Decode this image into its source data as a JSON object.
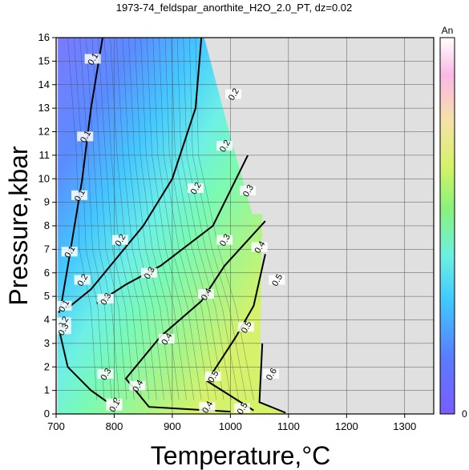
{
  "chart_data": {
    "type": "heatmap",
    "title": "1973-74_feldspar_anorthite_H2O_2.0_PT, dz=0.02",
    "xlabel": "Temperature,°C",
    "ylabel": "Pressure,kbar",
    "xlim": [
      700,
      1350
    ],
    "ylim": [
      0,
      16
    ],
    "xticks": [
      "700",
      "800",
      "900",
      "1000",
      "1100",
      "1200",
      "1300"
    ],
    "yticks": [
      "0",
      "1",
      "2",
      "3",
      "4",
      "5",
      "6",
      "7",
      "8",
      "9",
      "10",
      "11",
      "12",
      "13",
      "14",
      "15",
      "16"
    ],
    "grid": true,
    "colorbar": {
      "label": "An",
      "min_label": "0",
      "min": 0,
      "max": 1
    },
    "background_color": "#e0e0e0",
    "contour_labels": [
      {
        "t": 763,
        "p": 15.1,
        "text": "0.1"
      },
      {
        "t": 750,
        "p": 11.8,
        "text": "0.1"
      },
      {
        "t": 740,
        "p": 9.3,
        "text": "0.1"
      },
      {
        "t": 723,
        "p": 6.9,
        "text": "0.1"
      },
      {
        "t": 713,
        "p": 4.6,
        "text": "0.1"
      },
      {
        "t": 712,
        "p": 3.9,
        "text": "0.2"
      },
      {
        "t": 712,
        "p": 3.6,
        "text": "0.3"
      },
      {
        "t": 785,
        "p": 1.7,
        "text": "0.3"
      },
      {
        "t": 800,
        "p": 0.45,
        "text": "0.2"
      },
      {
        "t": 800,
        "p": 0.35,
        "text": "0.1"
      },
      {
        "t": 1005,
        "p": 13.6,
        "text": "0.2"
      },
      {
        "t": 990,
        "p": 11.4,
        "text": "0.2"
      },
      {
        "t": 940,
        "p": 9.6,
        "text": "0.2"
      },
      {
        "t": 810,
        "p": 7.4,
        "text": "0.2"
      },
      {
        "t": 745,
        "p": 5.7,
        "text": "0.2"
      },
      {
        "t": 1030,
        "p": 9.5,
        "text": "0.3"
      },
      {
        "t": 990,
        "p": 7.4,
        "text": "0.3"
      },
      {
        "t": 860,
        "p": 6.0,
        "text": "0.3"
      },
      {
        "t": 785,
        "p": 4.9,
        "text": "0.3"
      },
      {
        "t": 1050,
        "p": 7.1,
        "text": "0.4"
      },
      {
        "t": 958,
        "p": 5.1,
        "text": "0.4"
      },
      {
        "t": 890,
        "p": 3.2,
        "text": "0.4"
      },
      {
        "t": 840,
        "p": 1.2,
        "text": "0.4"
      },
      {
        "t": 960,
        "p": 0.3,
        "text": "0.4"
      },
      {
        "t": 1080,
        "p": 5.7,
        "text": "0.5"
      },
      {
        "t": 1027,
        "p": 3.7,
        "text": "0.5"
      },
      {
        "t": 970,
        "p": 1.6,
        "text": "0.5"
      },
      {
        "t": 1020,
        "p": 0.25,
        "text": "0.5"
      },
      {
        "t": 1070,
        "p": 1.7,
        "text": "0.6"
      }
    ]
  }
}
